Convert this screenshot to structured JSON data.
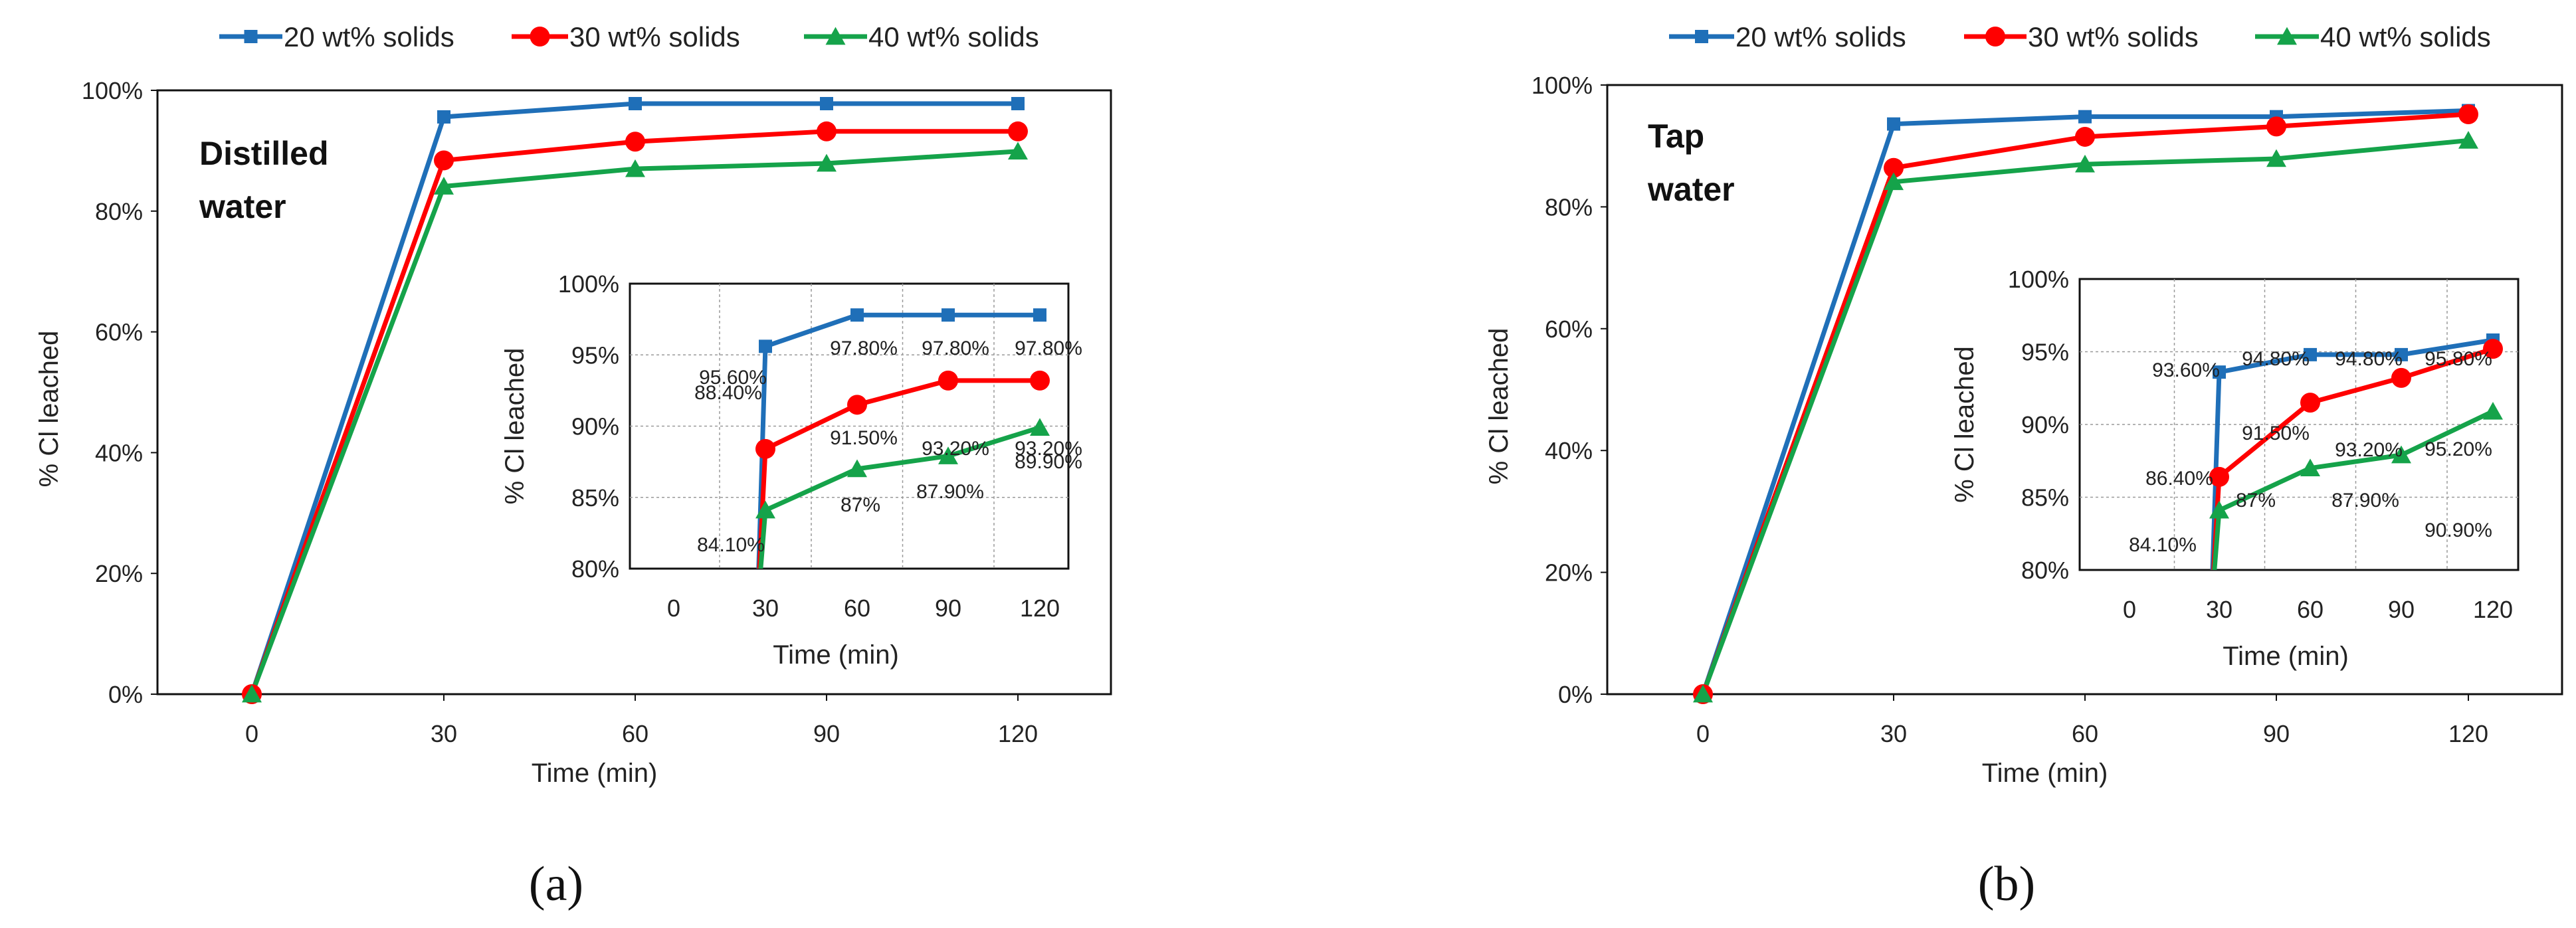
{
  "chart_data": [
    {
      "type": "line",
      "panel_label": "(a)",
      "annotation": [
        "Distilled",
        "water"
      ],
      "xlabel": "Time (min)",
      "ylabel": "% Cl leached",
      "x": [
        0,
        30,
        60,
        90,
        120
      ],
      "xticks": [
        "0",
        "30",
        "60",
        "90",
        "120"
      ],
      "ylim": [
        0,
        1
      ],
      "yticks": [
        "0%",
        "20%",
        "40%",
        "60%",
        "80%",
        "100%"
      ],
      "series": [
        {
          "name": "20 wt% solids",
          "values": [
            0,
            0.956,
            0.978,
            0.978,
            0.978
          ],
          "color": "#1F6FB8",
          "marker": "square"
        },
        {
          "name": "30 wt% solids",
          "values": [
            0,
            0.884,
            0.915,
            0.932,
            0.932
          ],
          "color": "#FF0000",
          "marker": "circle"
        },
        {
          "name": "40 wt% solids",
          "values": [
            0,
            0.841,
            0.87,
            0.879,
            0.899
          ],
          "color": "#15A34A",
          "marker": "triangle"
        }
      ],
      "inset": {
        "xlabel": "Time (min)",
        "ylabel": "% Cl leached",
        "ylim": [
          0.8,
          1.0
        ],
        "yticks": [
          "80%",
          "85%",
          "90%",
          "95%",
          "100%"
        ],
        "xticks": [
          "0",
          "30",
          "60",
          "90",
          "120"
        ],
        "labels": [
          [
            "",
            "95.60%",
            "97.80%",
            "97.80%",
            "97.80%"
          ],
          [
            "",
            "88.40%",
            "91.50%",
            "93.20%",
            "93.20%"
          ],
          [
            "",
            "84.10%",
            "87%",
            "87.90%",
            "89.90%"
          ]
        ]
      }
    },
    {
      "type": "line",
      "panel_label": "(b)",
      "annotation": [
        "Tap",
        "water"
      ],
      "xlabel": "Time (min)",
      "ylabel": "% Cl leached",
      "x": [
        0,
        30,
        60,
        90,
        120
      ],
      "xticks": [
        "0",
        "30",
        "60",
        "90",
        "120"
      ],
      "ylim": [
        0,
        1
      ],
      "yticks": [
        "0%",
        "20%",
        "40%",
        "60%",
        "80%",
        "100%"
      ],
      "series": [
        {
          "name": "20 wt% solids",
          "values": [
            0,
            0.936,
            0.948,
            0.948,
            0.958
          ],
          "color": "#1F6FB8",
          "marker": "square"
        },
        {
          "name": "30 wt% solids",
          "values": [
            0,
            0.864,
            0.915,
            0.932,
            0.952
          ],
          "color": "#FF0000",
          "marker": "circle"
        },
        {
          "name": "40 wt% solids",
          "values": [
            0,
            0.841,
            0.87,
            0.879,
            0.909
          ],
          "color": "#15A34A",
          "marker": "triangle"
        }
      ],
      "inset": {
        "xlabel": "Time (min)",
        "ylabel": "% Cl leached",
        "ylim": [
          0.8,
          1.0
        ],
        "yticks": [
          "80%",
          "85%",
          "90%",
          "95%",
          "100%"
        ],
        "xticks": [
          "0",
          "30",
          "60",
          "90",
          "120"
        ],
        "labels": [
          [
            "",
            "93.60%",
            "94.80%",
            "94.80%",
            "95.80%"
          ],
          [
            "",
            "86.40%",
            "91.50%",
            "93.20%",
            "95.20%"
          ],
          [
            "",
            "84.10%",
            "87%",
            "87.90%",
            "90.90%"
          ]
        ]
      }
    }
  ]
}
